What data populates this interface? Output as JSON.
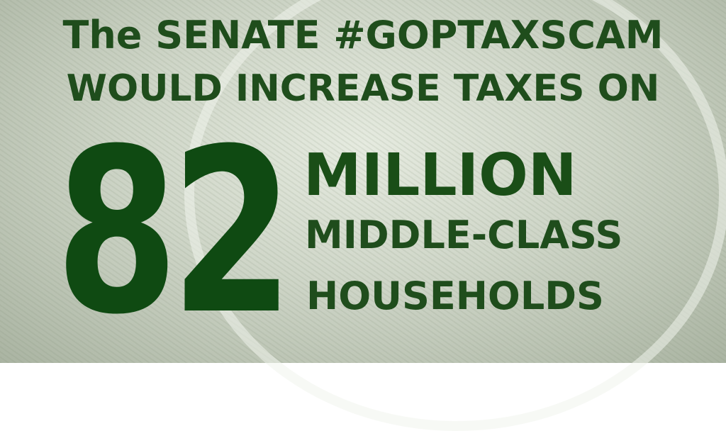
{
  "headline": {
    "line1": "The SENATE #GOPTAXSCAM",
    "line2": "WOULD INCREASE TAXES ON"
  },
  "number": "82",
  "unit": "MILLION",
  "line3": "MIDDLE-CLASS",
  "line4": "HOUSEHOLDS",
  "colors": {
    "text": "#1f4d1c",
    "number": "#0f4a12"
  }
}
